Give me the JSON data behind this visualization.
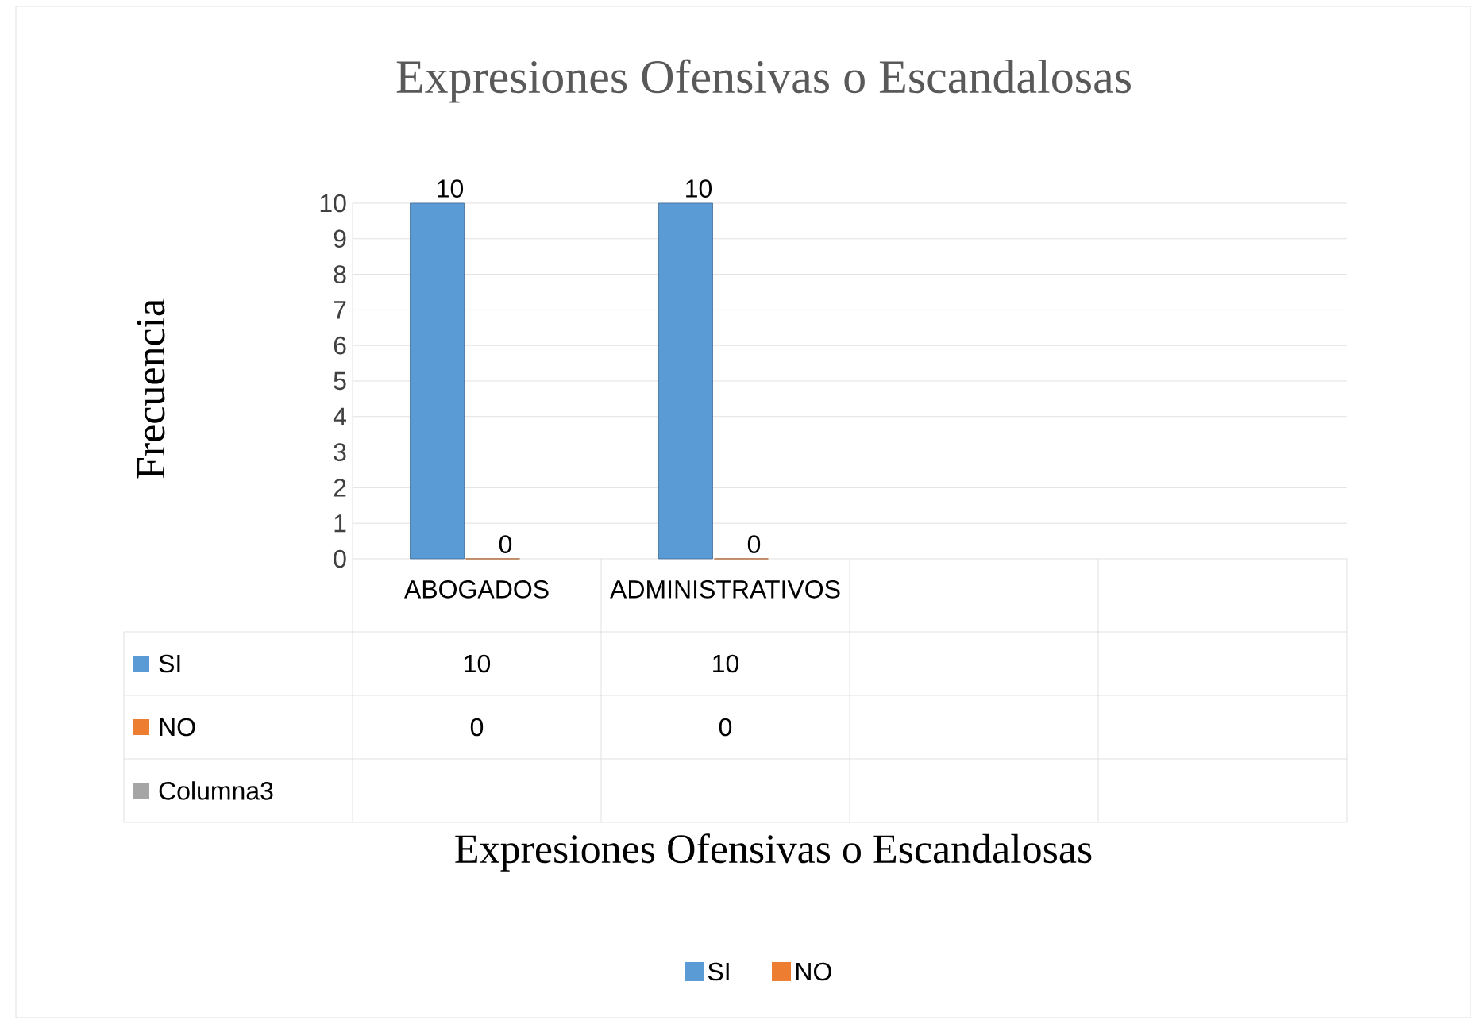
{
  "chart_data": {
    "type": "bar",
    "title": "Expresiones Ofensivas o Escandalosas",
    "ylabel": "Frecuencia",
    "annotations": [
      "Expresiones Ofensivas o Escandalosas"
    ],
    "categories": [
      "ABOGADOS",
      "ADMINISTRATIVOS",
      null,
      null
    ],
    "series": [
      {
        "name": "SI",
        "color": "#5b9bd5",
        "values": [
          10,
          10,
          null,
          null
        ],
        "value_labels": [
          "10",
          "10",
          null,
          null
        ]
      },
      {
        "name": "NO",
        "color": "#ed7d31",
        "values": [
          0,
          0,
          null,
          null
        ],
        "value_labels": [
          "0",
          "0",
          null,
          null
        ]
      },
      {
        "name": "Columna3",
        "color": "#a5a5a5",
        "values": [
          null,
          null,
          null,
          null
        ]
      }
    ],
    "ylim": [
      0,
      10
    ],
    "yticks": [
      0,
      1,
      2,
      3,
      4,
      5,
      6,
      7,
      8,
      9,
      10
    ],
    "grid": "y",
    "legend": "bottom"
  }
}
